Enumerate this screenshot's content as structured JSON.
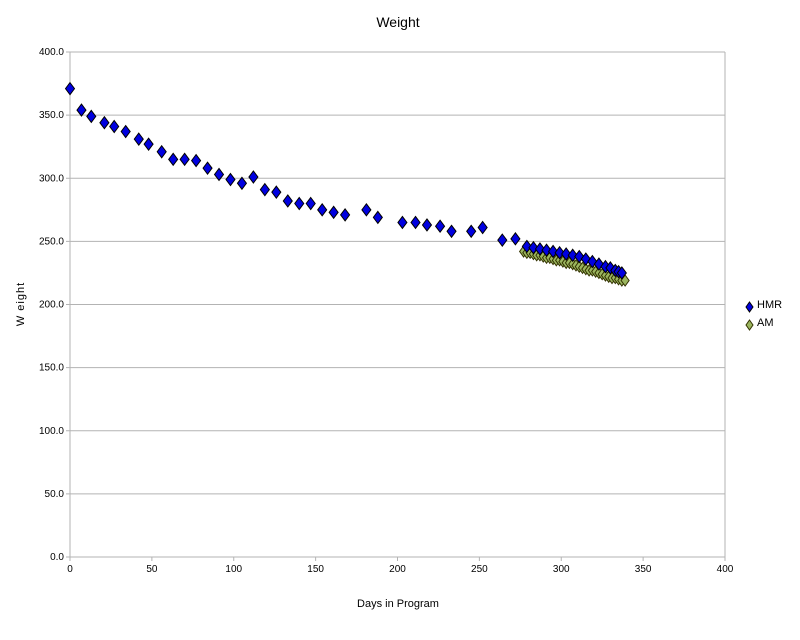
{
  "chart_data": {
    "type": "scatter",
    "title": "Weight",
    "xlabel": "Days in Program",
    "ylabel": "W eight",
    "xlim": [
      0,
      400
    ],
    "ylim": [
      0,
      400
    ],
    "xticks": [
      0,
      50,
      100,
      150,
      200,
      250,
      300,
      350,
      400
    ],
    "yticks": [
      0,
      50,
      100,
      150,
      200,
      250,
      300,
      350,
      400
    ],
    "ytick_decimals": 1,
    "grid": "horizontal",
    "gridline_color": "#b3b3b3",
    "axis_color": "#b3b3b3",
    "text_color": "#000000",
    "background_color": "#ffffff",
    "legend_position": "right",
    "series": [
      {
        "name": "HMR",
        "marker": "diamond",
        "color": "#0000e0",
        "edge": "#000000",
        "marker_w": 9,
        "marker_h": 12,
        "points": [
          [
            0,
            371
          ],
          [
            7,
            354
          ],
          [
            13,
            349
          ],
          [
            21,
            344
          ],
          [
            27,
            341
          ],
          [
            34,
            337
          ],
          [
            42,
            331
          ],
          [
            48,
            327
          ],
          [
            56,
            321
          ],
          [
            63,
            315
          ],
          [
            70,
            315
          ],
          [
            77,
            314
          ],
          [
            84,
            308
          ],
          [
            91,
            303
          ],
          [
            98,
            299
          ],
          [
            105,
            296
          ],
          [
            112,
            301
          ],
          [
            119,
            291
          ],
          [
            126,
            289
          ],
          [
            133,
            282
          ],
          [
            140,
            280
          ],
          [
            147,
            280
          ],
          [
            154,
            275
          ],
          [
            161,
            273
          ],
          [
            168,
            271
          ],
          [
            181,
            275
          ],
          [
            188,
            269
          ],
          [
            203,
            265
          ],
          [
            211,
            265
          ],
          [
            218,
            263
          ],
          [
            226,
            262
          ],
          [
            233,
            258
          ],
          [
            245,
            258
          ],
          [
            252,
            261
          ],
          [
            264,
            251
          ],
          [
            272,
            252
          ],
          [
            279,
            246
          ],
          [
            283,
            245
          ],
          [
            287,
            244
          ],
          [
            291,
            243
          ],
          [
            295,
            242
          ],
          [
            299,
            241
          ],
          [
            303,
            240
          ],
          [
            307,
            239
          ],
          [
            311,
            238
          ],
          [
            315,
            236
          ],
          [
            319,
            234
          ],
          [
            323,
            232
          ],
          [
            327,
            230
          ],
          [
            330,
            229
          ],
          [
            333,
            227
          ],
          [
            335,
            226
          ],
          [
            337,
            225
          ]
        ]
      },
      {
        "name": "AM",
        "marker": "diamond",
        "color": "#9bb55f",
        "edge": "#333300",
        "marker_w": 8,
        "marker_h": 11,
        "points": [
          [
            277,
            242
          ],
          [
            279,
            241
          ],
          [
            281,
            241
          ],
          [
            283,
            240
          ],
          [
            285,
            239
          ],
          [
            287,
            239
          ],
          [
            289,
            238
          ],
          [
            291,
            237
          ],
          [
            293,
            237
          ],
          [
            295,
            236
          ],
          [
            297,
            235
          ],
          [
            299,
            235
          ],
          [
            301,
            234
          ],
          [
            303,
            233
          ],
          [
            305,
            233
          ],
          [
            307,
            232
          ],
          [
            309,
            231
          ],
          [
            311,
            230
          ],
          [
            313,
            229
          ],
          [
            315,
            228
          ],
          [
            317,
            227
          ],
          [
            319,
            227
          ],
          [
            321,
            226
          ],
          [
            323,
            225
          ],
          [
            325,
            224
          ],
          [
            327,
            223
          ],
          [
            329,
            222
          ],
          [
            331,
            221
          ],
          [
            333,
            221
          ],
          [
            335,
            220
          ],
          [
            337,
            219
          ],
          [
            339,
            219
          ]
        ]
      }
    ]
  }
}
